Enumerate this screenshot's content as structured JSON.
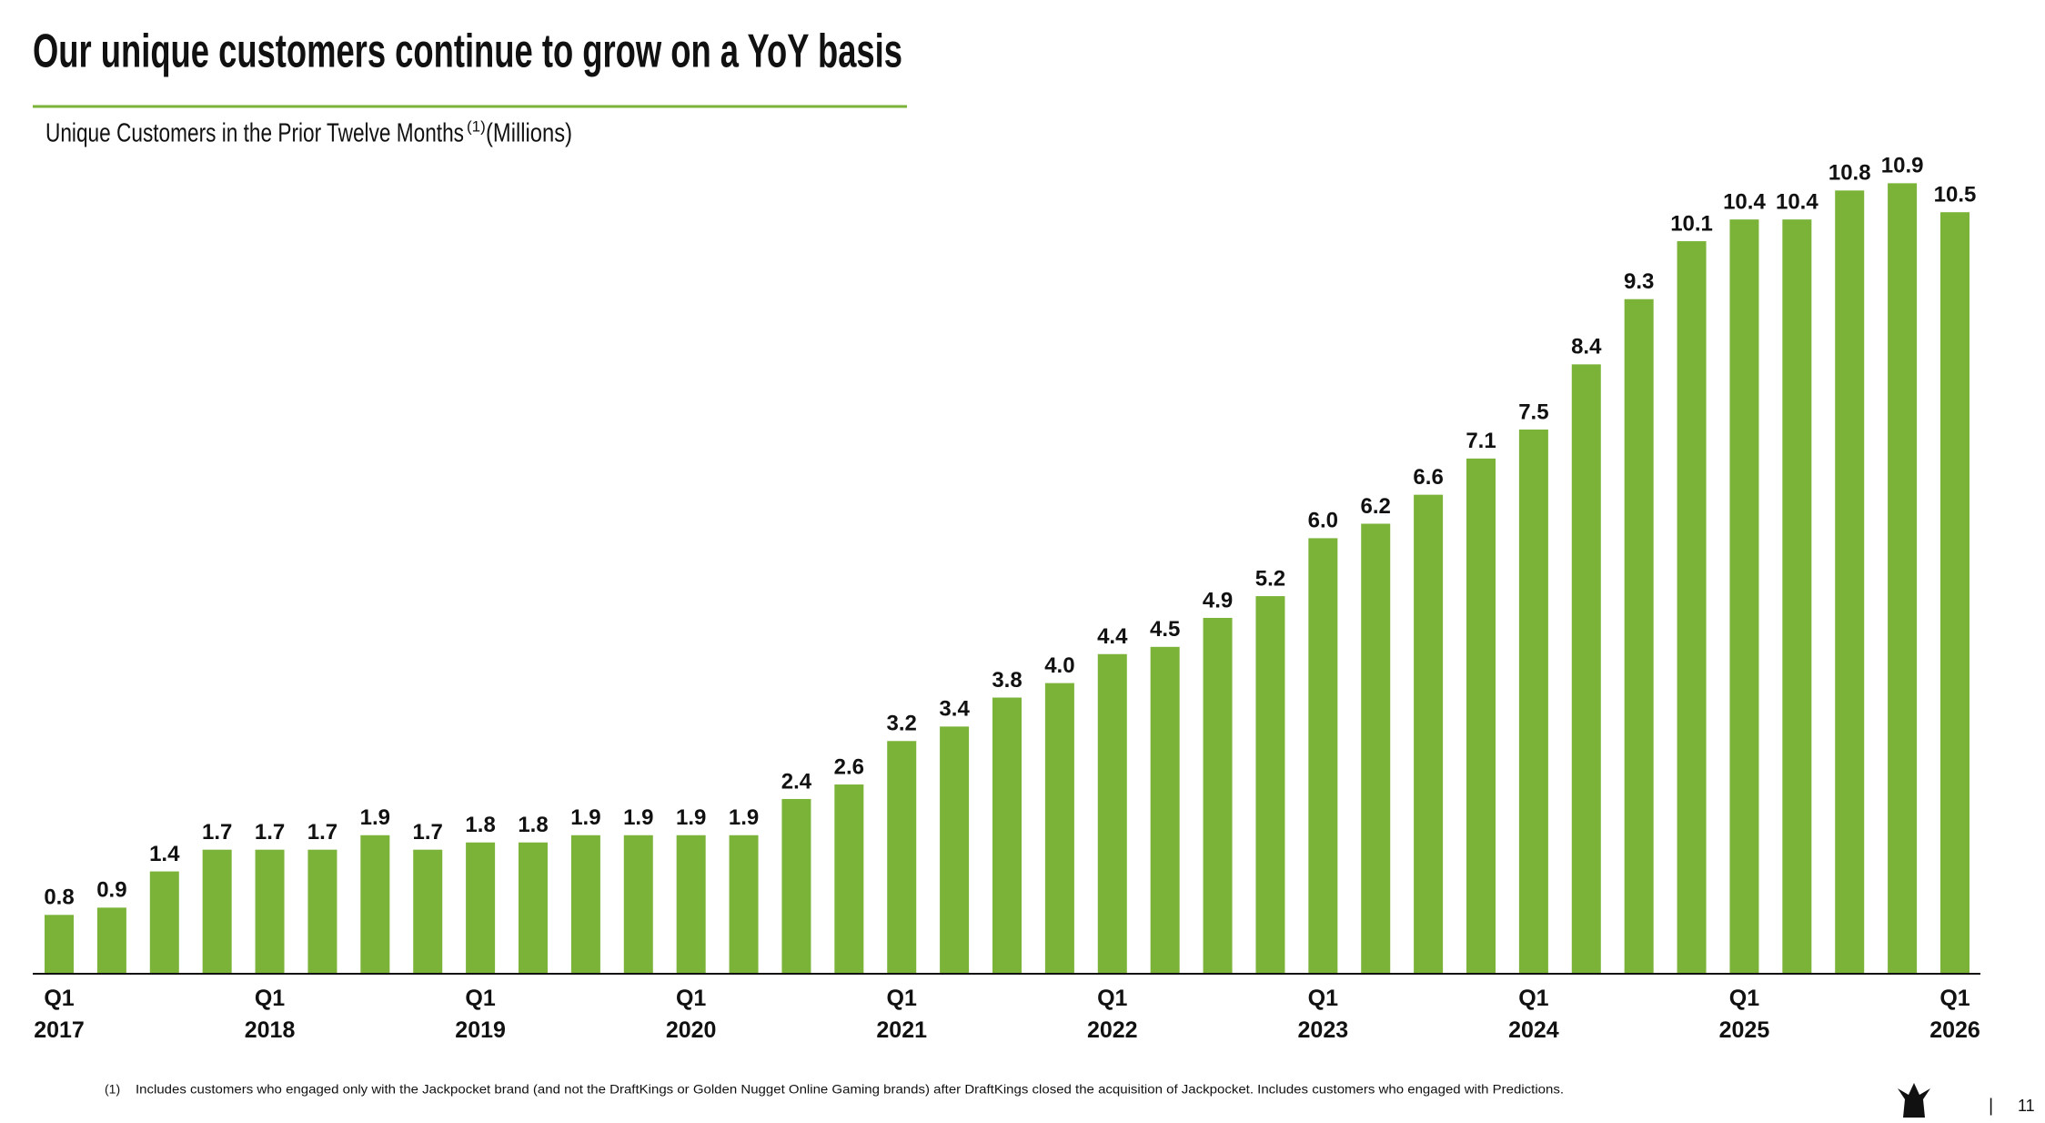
{
  "title": "Our unique customers continue to grow on a YoY basis",
  "chart_data": {
    "type": "bar",
    "subtitle": "Unique Customers in the Prior Twelve Months",
    "subtitle_note": "(1)",
    "subtitle_unit": "(Millions)",
    "color": "#7ab338",
    "categories": [
      "Q1 2017",
      null,
      null,
      null,
      "Q1 2018",
      null,
      null,
      null,
      "Q1 2019",
      null,
      null,
      null,
      "Q1 2020",
      null,
      null,
      null,
      "Q1 2021",
      null,
      null,
      null,
      "Q1 2022",
      null,
      null,
      null,
      "Q1 2023",
      null,
      null,
      null,
      "Q1 2024",
      null,
      null,
      null,
      "Q1 2025",
      null,
      null,
      null,
      "Q1 2026"
    ],
    "values": [
      0.8,
      0.9,
      1.4,
      1.7,
      1.7,
      1.7,
      1.9,
      1.7,
      1.8,
      1.8,
      1.9,
      1.9,
      1.9,
      1.9,
      2.4,
      2.6,
      3.2,
      3.4,
      3.8,
      4.0,
      4.4,
      4.5,
      4.9,
      5.2,
      6.0,
      6.2,
      6.6,
      7.1,
      7.5,
      8.4,
      9.3,
      10.1,
      10.4,
      10.4,
      10.8,
      10.9,
      10.5
    ],
    "value_labels": [
      "0.8",
      "0.9",
      "1.4",
      "1.7",
      "1.7",
      "1.7",
      "1.9",
      "1.7",
      "1.8",
      "1.8",
      "1.9",
      "1.9",
      "1.9",
      "1.9",
      "2.4",
      "2.6",
      "3.2",
      "3.4",
      "3.8",
      "4.0",
      "4.4",
      "4.5",
      "4.9",
      "5.2",
      "6.0",
      "6.2",
      "6.6",
      "7.1",
      "7.5",
      "8.4",
      "9.3",
      "10.1",
      "10.4",
      "10.4",
      "10.8",
      "10.9",
      "10.5"
    ]
  },
  "footnote": {
    "marker": "(1)",
    "text": "Includes customers who engaged only with the Jackpocket brand (and not the DraftKings or Golden Nugget Online Gaming brands) after DraftKings closed the acquisition of Jackpocket. Includes customers who engaged with Predictions."
  },
  "page": {
    "separator": "|",
    "number": "11"
  }
}
